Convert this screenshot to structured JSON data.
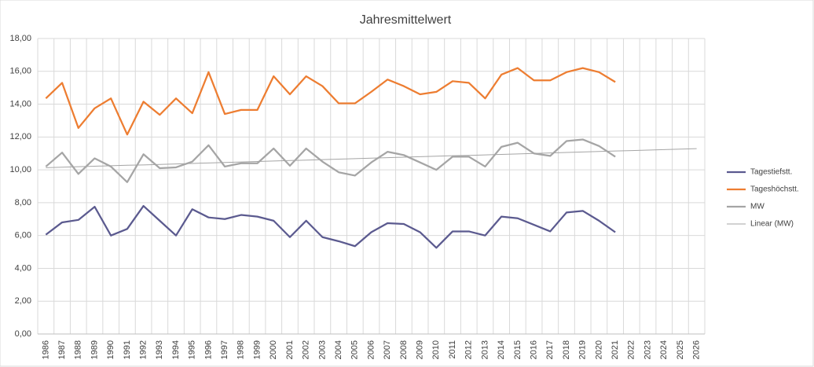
{
  "chart_data": {
    "type": "line",
    "title": "Jahresmittelwert",
    "categories": [
      "1986",
      "1987",
      "1988",
      "1989",
      "1990",
      "1991",
      "1992",
      "1993",
      "1994",
      "1995",
      "1996",
      "1997",
      "1998",
      "1999",
      "2000",
      "2001",
      "2002",
      "2003",
      "2004",
      "2005",
      "2006",
      "2007",
      "2008",
      "2009",
      "2010",
      "2011",
      "2012",
      "2013",
      "2014",
      "2015",
      "2016",
      "2017",
      "2018",
      "2019",
      "2020",
      "2021",
      "2022",
      "2023",
      "2024",
      "2025",
      "2026"
    ],
    "series": [
      {
        "name": "Tagestiefstt.",
        "color": "#5b5a8f",
        "values": [
          6.05,
          6.8,
          6.95,
          7.75,
          6.0,
          6.4,
          7.8,
          6.9,
          6.0,
          7.6,
          7.1,
          7.0,
          7.25,
          7.15,
          6.9,
          5.9,
          6.9,
          5.9,
          5.65,
          5.35,
          6.2,
          6.75,
          6.7,
          6.2,
          5.25,
          6.25,
          6.25,
          6.0,
          7.15,
          7.05,
          6.65,
          6.25,
          7.4,
          7.5,
          6.9,
          6.2,
          null,
          null,
          null,
          null,
          null
        ]
      },
      {
        "name": "Tageshöchstt.",
        "color": "#ed7d31",
        "values": [
          14.35,
          15.3,
          12.55,
          13.75,
          14.35,
          12.15,
          14.15,
          13.35,
          14.35,
          13.45,
          15.95,
          13.4,
          13.65,
          13.65,
          15.7,
          14.6,
          15.7,
          15.1,
          14.05,
          14.05,
          14.75,
          15.5,
          15.1,
          14.6,
          14.75,
          15.4,
          15.3,
          14.35,
          15.8,
          16.2,
          15.45,
          15.45,
          15.95,
          16.2,
          15.95,
          15.35,
          null,
          null,
          null,
          null,
          null
        ]
      },
      {
        "name": "MW",
        "color": "#a5a5a5",
        "values": [
          10.2,
          11.05,
          9.75,
          10.7,
          10.2,
          9.25,
          10.95,
          10.1,
          10.15,
          10.5,
          11.5,
          10.2,
          10.4,
          10.4,
          11.3,
          10.25,
          11.3,
          10.5,
          9.85,
          9.65,
          10.45,
          11.1,
          10.9,
          10.45,
          10.0,
          10.8,
          10.8,
          10.2,
          11.4,
          11.65,
          11.0,
          10.85,
          11.75,
          11.85,
          11.45,
          10.8,
          null,
          null,
          null,
          null,
          null
        ]
      },
      {
        "name": "Linear (MW)",
        "color": "#a5a5a5",
        "trendline": true,
        "values": [
          10.13,
          10.16,
          10.19,
          10.22,
          10.25,
          10.28,
          10.3,
          10.33,
          10.36,
          10.39,
          10.42,
          10.45,
          10.48,
          10.51,
          10.54,
          10.57,
          10.59,
          10.62,
          10.65,
          10.68,
          10.71,
          10.74,
          10.77,
          10.8,
          10.83,
          10.86,
          10.88,
          10.91,
          10.94,
          10.97,
          11.0,
          11.03,
          11.06,
          11.09,
          11.12,
          11.15,
          11.17,
          11.2,
          11.23,
          11.26,
          11.29
        ]
      }
    ],
    "ylim": [
      0,
      18
    ],
    "yticks": [
      {
        "value": 0,
        "label": "0,00"
      },
      {
        "value": 2,
        "label": "2,00"
      },
      {
        "value": 4,
        "label": "4,00"
      },
      {
        "value": 6,
        "label": "6,00"
      },
      {
        "value": 8,
        "label": "8,00"
      },
      {
        "value": 10,
        "label": "10,00"
      },
      {
        "value": 12,
        "label": "12,00"
      },
      {
        "value": 14,
        "label": "14,00"
      },
      {
        "value": 16,
        "label": "16,00"
      },
      {
        "value": 18,
        "label": "18,00"
      }
    ],
    "grid": true,
    "legend": "right"
  }
}
